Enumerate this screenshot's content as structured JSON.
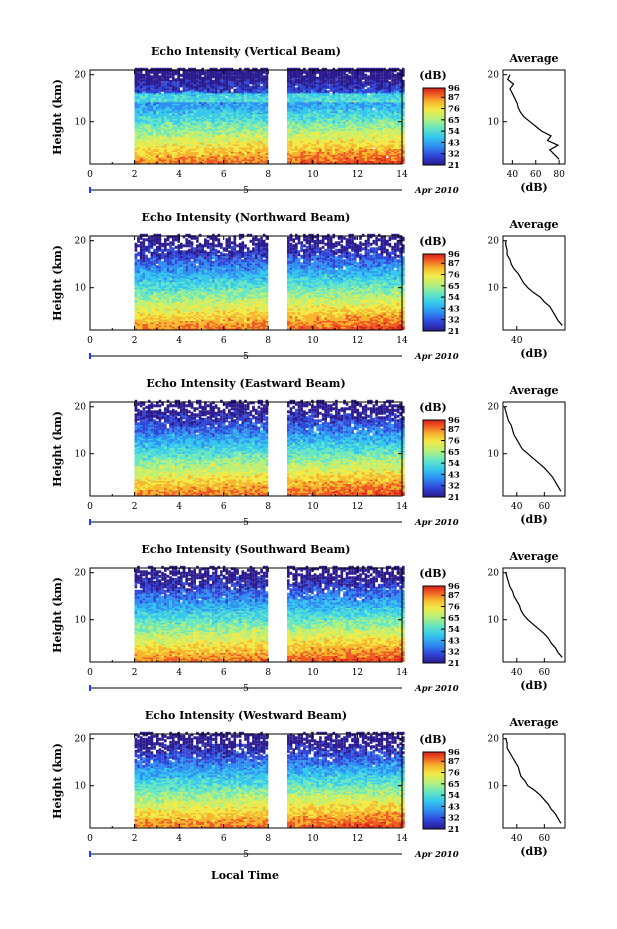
{
  "chart_data": [
    {
      "type": "heatmap",
      "title": "Echo Intensity (Vertical Beam)",
      "ylabel": "Height (km)",
      "xticks": [
        "0",
        "2",
        "4",
        "6",
        "8",
        "10",
        "12",
        "14"
      ],
      "xlim": [
        0,
        14
      ],
      "yticks": [
        "10",
        "20"
      ],
      "ylim": [
        1,
        21
      ],
      "date_day": "5",
      "date_label": "Apr 2010",
      "data_gap": [
        8.0,
        8.8
      ],
      "data_start": 2.0,
      "colorbar": {
        "unit": "(dB)",
        "ticks": [
          "96",
          "87",
          "76",
          "65",
          "54",
          "43",
          "32",
          "21"
        ],
        "range": [
          21,
          96
        ]
      },
      "profile": {
        "title": "Average",
        "xlabel": "(dB)",
        "xticks": [
          "40",
          "60",
          "80"
        ],
        "xlim": [
          32,
          85
        ],
        "heights": [
          2,
          3,
          4,
          5,
          6,
          7,
          8,
          9,
          10,
          11,
          12,
          13,
          14,
          15,
          16,
          17,
          18,
          19,
          20
        ],
        "values": [
          80,
          76,
          72,
          79,
          70,
          73,
          65,
          60,
          55,
          50,
          47,
          45,
          44,
          42,
          40,
          38,
          41,
          36,
          38
        ]
      }
    },
    {
      "type": "heatmap",
      "title": "Echo Intensity (Northward Beam)",
      "ylabel": "Height (km)",
      "xticks": [
        "0",
        "2",
        "4",
        "6",
        "8",
        "10",
        "12",
        "14"
      ],
      "xlim": [
        0,
        14
      ],
      "yticks": [
        "10",
        "20"
      ],
      "ylim": [
        1,
        21
      ],
      "date_day": "5",
      "date_label": "Apr 2010",
      "data_gap": [
        8.0,
        8.8
      ],
      "data_start": 2.0,
      "colorbar": {
        "unit": "(dB)",
        "ticks": [
          "96",
          "87",
          "76",
          "65",
          "54",
          "43",
          "32",
          "21"
        ],
        "range": [
          21,
          96
        ]
      },
      "profile": {
        "title": "Average",
        "xlabel": "(dB)",
        "xticks": [
          "40"
        ],
        "xlim": [
          30,
          75
        ],
        "heights": [
          2,
          3,
          4,
          5,
          6,
          7,
          8,
          9,
          10,
          11,
          12,
          13,
          14,
          15,
          16,
          17,
          18,
          19,
          20
        ],
        "values": [
          73,
          70,
          68,
          66,
          64,
          60,
          57,
          52,
          48,
          45,
          43,
          41,
          38,
          36,
          35,
          33,
          33,
          32,
          32
        ]
      }
    },
    {
      "type": "heatmap",
      "title": "Echo Intensity (Eastward Beam)",
      "ylabel": "Height (km)",
      "xticks": [
        "0",
        "2",
        "4",
        "6",
        "8",
        "10",
        "12",
        "14"
      ],
      "xlim": [
        0,
        14
      ],
      "yticks": [
        "10",
        "20"
      ],
      "ylim": [
        1,
        21
      ],
      "date_day": "5",
      "date_label": "Apr 2010",
      "data_gap": [
        8.0,
        8.8
      ],
      "data_start": 2.0,
      "colorbar": {
        "unit": "(dB)",
        "ticks": [
          "96",
          "87",
          "76",
          "65",
          "54",
          "43",
          "32",
          "21"
        ],
        "range": [
          21,
          96
        ]
      },
      "profile": {
        "title": "Average",
        "xlabel": "(dB)",
        "xticks": [
          "40",
          "60"
        ],
        "xlim": [
          30,
          75
        ],
        "heights": [
          2,
          3,
          4,
          5,
          6,
          7,
          8,
          9,
          10,
          11,
          12,
          13,
          14,
          15,
          16,
          17,
          18,
          19,
          20
        ],
        "values": [
          72,
          70,
          68,
          66,
          63,
          60,
          56,
          52,
          48,
          44,
          42,
          40,
          38,
          37,
          36,
          34,
          33,
          32,
          31
        ]
      }
    },
    {
      "type": "heatmap",
      "title": "Echo Intensity (Southward Beam)",
      "ylabel": "Height (km)",
      "xticks": [
        "0",
        "2",
        "4",
        "6",
        "8",
        "10",
        "12",
        "14"
      ],
      "xlim": [
        0,
        14
      ],
      "yticks": [
        "10",
        "20"
      ],
      "ylim": [
        1,
        21
      ],
      "date_day": "5",
      "date_label": "Apr 2010",
      "data_gap": [
        8.0,
        8.8
      ],
      "data_start": 2.0,
      "colorbar": {
        "unit": "(dB)",
        "ticks": [
          "96",
          "87",
          "76",
          "65",
          "54",
          "43",
          "32",
          "21"
        ],
        "range": [
          21,
          96
        ]
      },
      "profile": {
        "title": "Average",
        "xlabel": "(dB)",
        "xticks": [
          "40",
          "60"
        ],
        "xlim": [
          30,
          75
        ],
        "heights": [
          2,
          3,
          4,
          5,
          6,
          7,
          8,
          9,
          10,
          11,
          12,
          13,
          14,
          15,
          16,
          17,
          18,
          19,
          20
        ],
        "values": [
          73,
          70,
          68,
          65,
          63,
          60,
          56,
          52,
          48,
          45,
          43,
          42,
          40,
          38,
          37,
          35,
          34,
          33,
          32
        ]
      }
    },
    {
      "type": "heatmap",
      "title": "Echo Intensity (Westward Beam)",
      "ylabel": "Height (km)",
      "xticks": [
        "0",
        "2",
        "4",
        "6",
        "8",
        "10",
        "12",
        "14"
      ],
      "xlim": [
        0,
        14
      ],
      "yticks": [
        "10",
        "20"
      ],
      "ylim": [
        1,
        21
      ],
      "date_day": "5",
      "date_label": "Apr 2010",
      "data_gap": [
        8.0,
        8.8
      ],
      "data_start": 2.0,
      "colorbar": {
        "unit": "(dB)",
        "ticks": [
          "96",
          "87",
          "76",
          "65",
          "54",
          "43",
          "32",
          "21"
        ],
        "range": [
          21,
          96
        ]
      },
      "profile": {
        "title": "Average",
        "xlabel": "(dB)",
        "xticks": [
          "40",
          "60"
        ],
        "xlim": [
          30,
          75
        ],
        "heights": [
          2,
          3,
          4,
          5,
          6,
          7,
          8,
          9,
          10,
          11,
          12,
          13,
          14,
          15,
          16,
          17,
          18,
          19,
          20
        ],
        "values": [
          72,
          70,
          68,
          65,
          63,
          60,
          57,
          53,
          48,
          46,
          43,
          42,
          41,
          39,
          37,
          35,
          33,
          33,
          32
        ]
      }
    }
  ],
  "shared_xlabel": "Local Time",
  "colors": {
    "scale": [
      "#2a1a8f",
      "#2f46d8",
      "#2f8df2",
      "#35c7ee",
      "#66e6c3",
      "#b6f07a",
      "#f2ea47",
      "#f7b52e",
      "#ef5a22",
      "#d81f1a"
    ]
  }
}
